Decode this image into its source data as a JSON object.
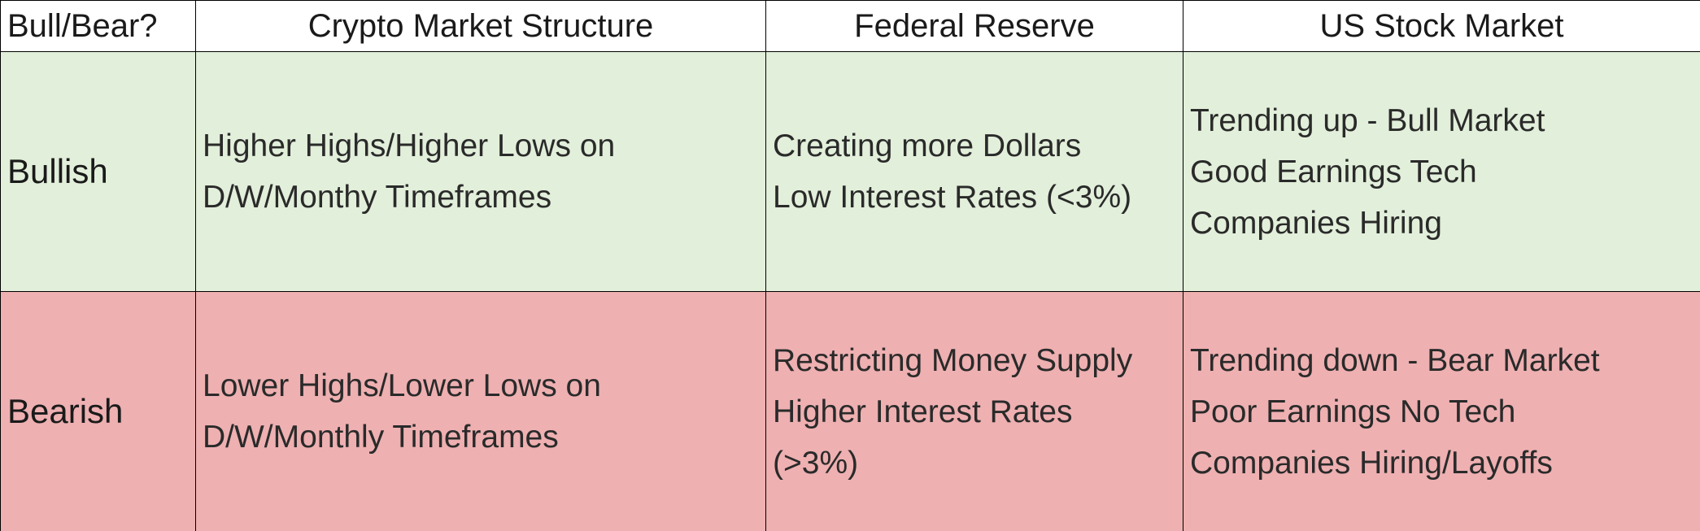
{
  "table": {
    "header": [
      "Bull/Bear?",
      "Crypto Market Structure",
      "Federal Reserve",
      "US Stock Market"
    ],
    "rows": [
      {
        "label": "Bullish",
        "cells": [
          [
            "Higher Highs/Higher Lows on",
            "D/W/Monthy Timeframes"
          ],
          [
            "Creating more Dollars",
            "Low Interest Rates (<3%)"
          ],
          [
            "Trending up - Bull Market",
            "Good Earnings Tech",
            "Companies Hiring"
          ]
        ]
      },
      {
        "label": "Bearish",
        "cells": [
          [
            "Lower Highs/Lower Lows on",
            "D/W/Monthly Timeframes"
          ],
          [
            "Restricting Money Supply",
            "Higher Interest Rates",
            "(>3%)"
          ],
          [
            "Trending down - Bear Market",
            "Poor Earnings No Tech",
            "Companies Hiring/Layoffs"
          ]
        ]
      }
    ]
  }
}
